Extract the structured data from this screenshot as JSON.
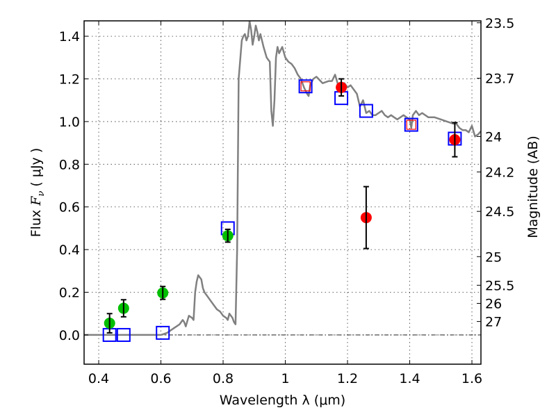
{
  "chart_data": {
    "type": "scatter",
    "title": "",
    "xlabel": "Wavelength  λ (μm)",
    "ylabel": "Flux  F_ν  ( μJy )",
    "ylabel_parts": {
      "prefix": "Flux ",
      "symbol": "F",
      "subscript": "ν",
      "suffix": "  ( μJy )"
    },
    "ylabel_right": "Magnitude (AB)",
    "xlim": [
      0.353,
      1.629
    ],
    "ylim": [
      -0.137,
      1.472
    ],
    "grid": true,
    "x_ticks": [
      {
        "value": 0.4,
        "label": "0.4"
      },
      {
        "value": 0.6,
        "label": "0.6"
      },
      {
        "value": 0.8,
        "label": "0.8"
      },
      {
        "value": 1.0,
        "label": "1"
      },
      {
        "value": 1.2,
        "label": "1.2"
      },
      {
        "value": 1.4,
        "label": "1.4"
      },
      {
        "value": 1.6,
        "label": "1.6"
      }
    ],
    "y_ticks": [
      {
        "value": 0.0,
        "label": "0.0"
      },
      {
        "value": 0.2,
        "label": "0.2"
      },
      {
        "value": 0.4,
        "label": "0.4"
      },
      {
        "value": 0.6,
        "label": "0.6"
      },
      {
        "value": 0.8,
        "label": "0.8"
      },
      {
        "value": 1.0,
        "label": "1.0"
      },
      {
        "value": 1.2,
        "label": "1.2"
      },
      {
        "value": 1.4,
        "label": "1.4"
      }
    ],
    "y_right_ticks": [
      {
        "flux": 1.463,
        "label": "23.5"
      },
      {
        "flux": 1.203,
        "label": "23.7"
      },
      {
        "flux": 0.93,
        "label": "24"
      },
      {
        "flux": 0.764,
        "label": "24.2"
      },
      {
        "flux": 0.579,
        "label": "24.5"
      },
      {
        "flux": 0.367,
        "label": "25"
      },
      {
        "flux": 0.233,
        "label": "25.5"
      },
      {
        "flux": 0.148,
        "label": "26"
      },
      {
        "flux": 0.063,
        "label": "27"
      }
    ],
    "zero_line": 0.0,
    "series": [
      {
        "name": "model-spectrum",
        "kind": "line",
        "color": "#808080",
        "x": [
          0.353,
          0.44,
          0.5,
          0.6,
          0.62,
          0.64,
          0.65,
          0.66,
          0.67,
          0.675,
          0.68,
          0.69,
          0.7,
          0.705,
          0.71,
          0.715,
          0.72,
          0.73,
          0.735,
          0.74,
          0.75,
          0.76,
          0.77,
          0.78,
          0.79,
          0.8,
          0.81,
          0.815,
          0.82,
          0.83,
          0.835,
          0.84,
          0.845,
          0.85,
          0.86,
          0.865,
          0.87,
          0.875,
          0.88,
          0.885,
          0.89,
          0.895,
          0.9,
          0.905,
          0.91,
          0.915,
          0.92,
          0.93,
          0.94,
          0.945,
          0.95,
          0.955,
          0.96,
          0.965,
          0.97,
          0.975,
          0.98,
          0.99,
          1.0,
          1.01,
          1.02,
          1.03,
          1.04,
          1.05,
          1.06,
          1.07,
          1.075,
          1.08,
          1.09,
          1.1,
          1.12,
          1.14,
          1.15,
          1.16,
          1.17,
          1.19,
          1.2,
          1.21,
          1.22,
          1.23,
          1.24,
          1.25,
          1.26,
          1.27,
          1.28,
          1.29,
          1.3,
          1.31,
          1.32,
          1.33,
          1.34,
          1.35,
          1.36,
          1.37,
          1.38,
          1.39,
          1.4,
          1.405,
          1.41,
          1.42,
          1.43,
          1.44,
          1.46,
          1.48,
          1.5,
          1.52,
          1.54,
          1.55,
          1.56,
          1.57,
          1.58,
          1.59,
          1.6,
          1.61,
          1.62,
          1.629
        ],
        "y": [
          0.0,
          0.0,
          0.0,
          0.0,
          0.01,
          0.03,
          0.04,
          0.05,
          0.07,
          0.06,
          0.04,
          0.09,
          0.08,
          0.07,
          0.2,
          0.25,
          0.28,
          0.26,
          0.22,
          0.2,
          0.18,
          0.16,
          0.14,
          0.12,
          0.11,
          0.09,
          0.08,
          0.07,
          0.1,
          0.08,
          0.06,
          0.05,
          0.4,
          1.2,
          1.38,
          1.4,
          1.41,
          1.38,
          1.4,
          1.47,
          1.43,
          1.36,
          1.4,
          1.45,
          1.42,
          1.38,
          1.41,
          1.35,
          1.3,
          1.29,
          1.28,
          1.05,
          0.98,
          1.1,
          1.3,
          1.35,
          1.32,
          1.35,
          1.3,
          1.28,
          1.27,
          1.25,
          1.22,
          1.2,
          1.16,
          1.13,
          1.12,
          1.17,
          1.2,
          1.21,
          1.18,
          1.19,
          1.19,
          1.22,
          1.17,
          1.18,
          1.16,
          1.17,
          1.15,
          1.13,
          1.07,
          1.1,
          1.04,
          1.05,
          1.03,
          1.03,
          1.04,
          1.05,
          1.03,
          1.02,
          1.03,
          1.02,
          1.01,
          1.02,
          1.03,
          1.02,
          1.01,
          0.97,
          1.03,
          1.05,
          1.03,
          1.04,
          1.02,
          1.02,
          1.01,
          1.0,
          0.99,
          0.99,
          0.97,
          0.96,
          0.96,
          0.95,
          0.98,
          0.93,
          0.94,
          0.955
        ]
      },
      {
        "name": "observed-green",
        "kind": "points-with-errors",
        "color": "#00bf00",
        "x": [
          0.435,
          0.48,
          0.606,
          0.815
        ],
        "y": [
          0.055,
          0.125,
          0.197,
          0.465
        ],
        "yerr": [
          0.045,
          0.04,
          0.03,
          0.03
        ]
      },
      {
        "name": "observed-red",
        "kind": "points-with-errors",
        "color": "#ff0000",
        "x": [
          1.18,
          1.26,
          1.545
        ],
        "y": [
          1.16,
          0.55,
          0.915
        ],
        "yerr": [
          0.04,
          0.145,
          0.08
        ]
      },
      {
        "name": "model-photometry",
        "kind": "open-squares",
        "color": "#0000ff",
        "x": [
          0.435,
          0.48,
          0.606,
          0.815,
          1.065,
          1.18,
          1.26,
          1.405,
          1.545
        ],
        "y": [
          0.0,
          0.0,
          0.01,
          0.5,
          1.165,
          1.11,
          1.05,
          0.985,
          0.92
        ]
      },
      {
        "name": "model-photometry-alt",
        "kind": "open-squares-small",
        "color": "#ff0000",
        "x": [
          1.065,
          1.405
        ],
        "y": [
          1.165,
          0.985
        ]
      }
    ]
  }
}
